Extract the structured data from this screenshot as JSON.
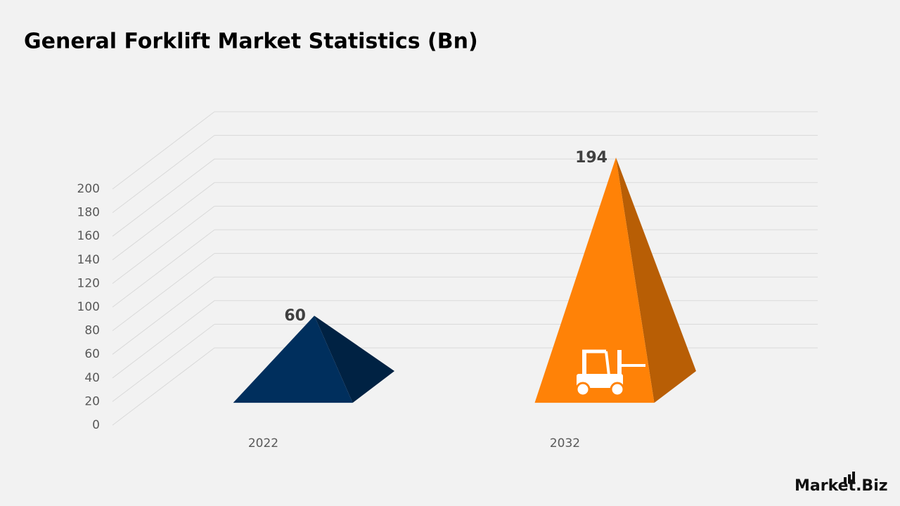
{
  "chart_data": {
    "type": "pyramid3d",
    "title": "General Forklift Market Statistics (Bn)",
    "categories": [
      "2022",
      "2032"
    ],
    "values": [
      60,
      194
    ],
    "colors": [
      "#002f5d",
      "#ff8207"
    ],
    "ylim": [
      0,
      200
    ],
    "yticks": [
      0,
      20,
      40,
      60,
      80,
      100,
      120,
      140,
      160,
      180,
      200
    ],
    "grid": true
  },
  "brand": "Market.Biz"
}
